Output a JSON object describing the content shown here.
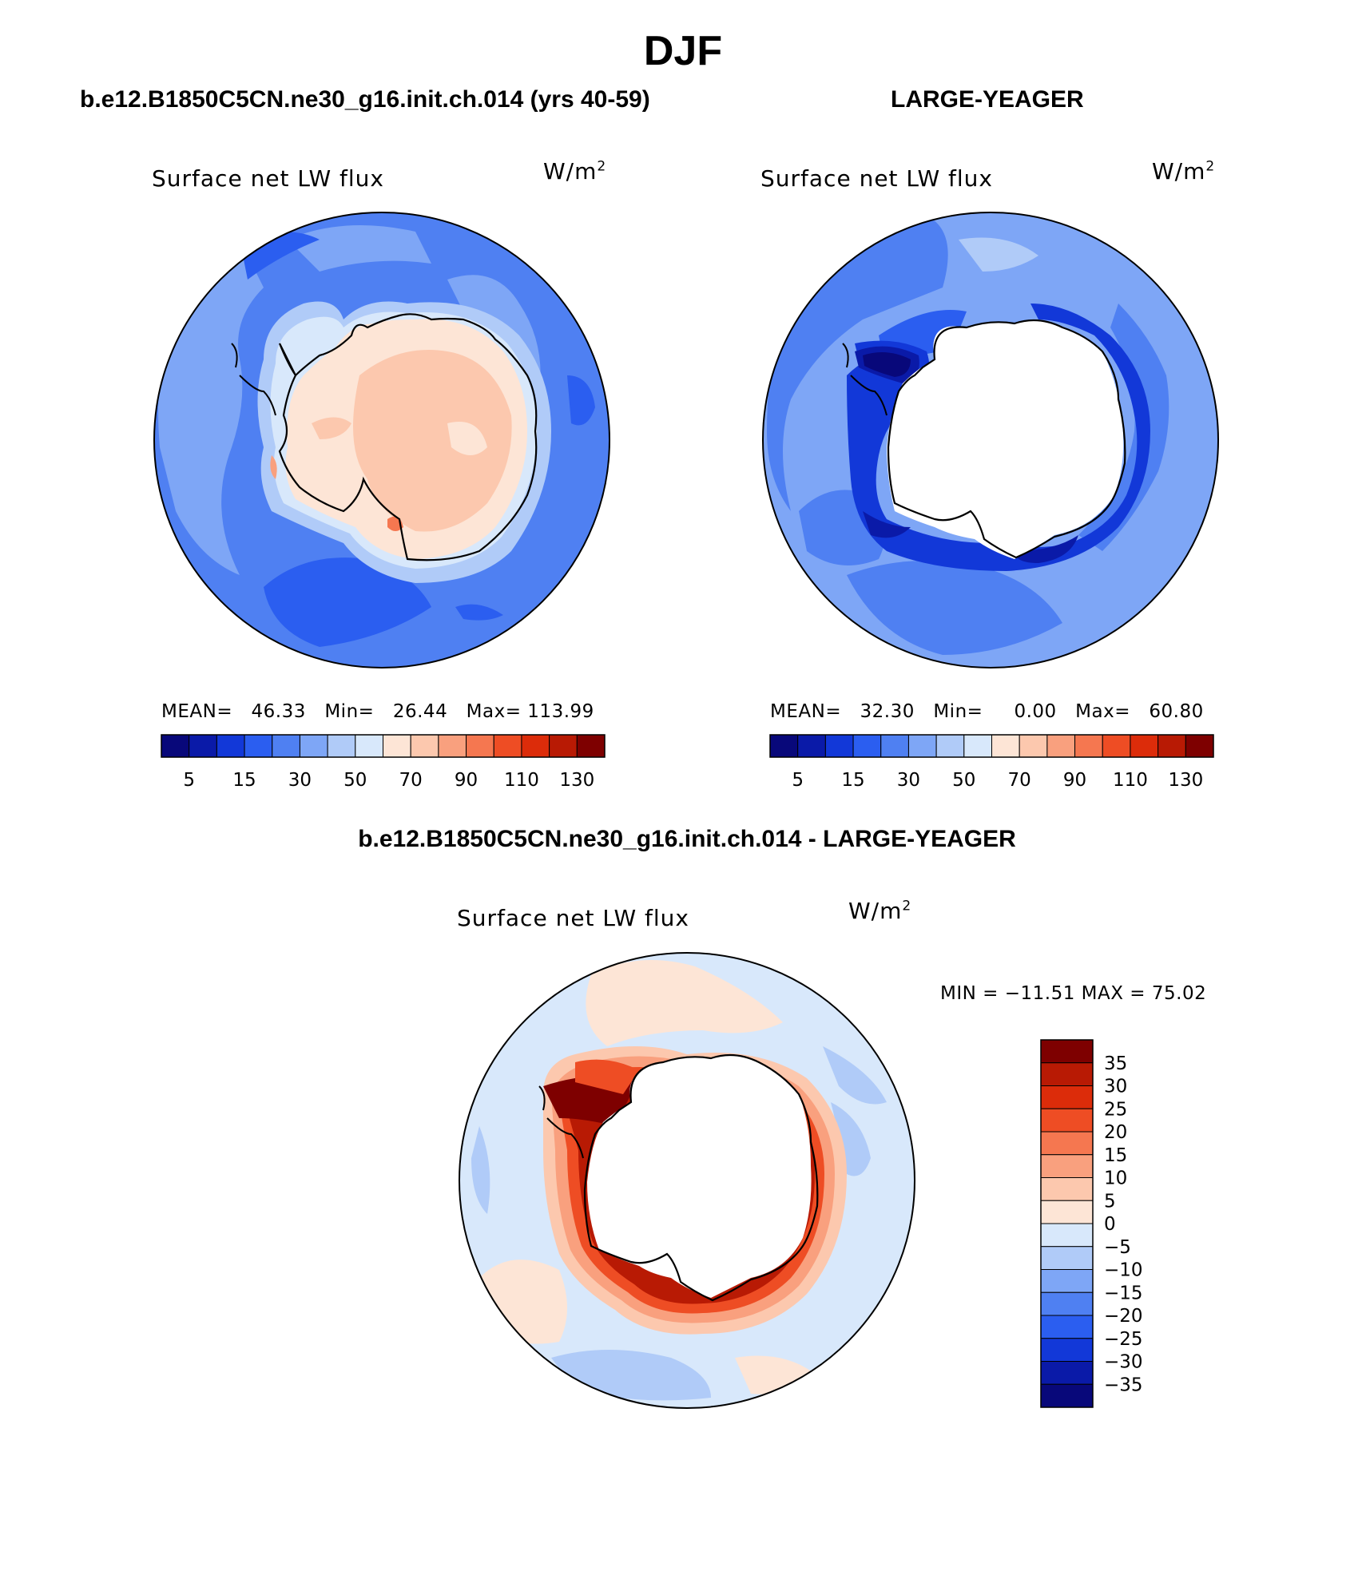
{
  "title": "DJF",
  "panels": [
    {
      "case": "b.e12.B1850C5CN.ne30_g16.init.ch.014 (yrs 40-59)",
      "variable": "Surface net LW flux",
      "units": "W/m",
      "units_sup": "2",
      "stats": {
        "mean_label": "MEAN=",
        "mean": "46.33",
        "min_label": "Min=",
        "min": "26.44",
        "max_label": "Max=",
        "max": "113.99"
      },
      "colorbar_labels": [
        "5",
        "15",
        "30",
        "50",
        "70",
        "90",
        "110",
        "130"
      ]
    },
    {
      "case": "LARGE-YEAGER",
      "variable": "Surface net LW flux",
      "units": "W/m",
      "units_sup": "2",
      "stats": {
        "mean_label": "MEAN=",
        "mean": "32.30",
        "min_label": "Min=",
        "min": "0.00",
        "max_label": "Max=",
        "max": "60.80"
      },
      "colorbar_labels": [
        "5",
        "15",
        "30",
        "50",
        "70",
        "90",
        "110",
        "130"
      ]
    },
    {
      "case": "b.e12.B1850C5CN.ne30_g16.init.ch.014 - LARGE-YEAGER",
      "variable": "Surface net LW flux",
      "units": "W/m",
      "units_sup": "2",
      "minmax": "MIN = −11.51 MAX =   75.02",
      "colorbar_labels": [
        "35",
        "30",
        "25",
        "20",
        "15",
        "10",
        "5",
        "0",
        "−5",
        "−10",
        "−15",
        "−20",
        "−25",
        "−30",
        "−35"
      ]
    }
  ],
  "colors": {
    "abs_scale": [
      "#08087a",
      "#0a1aa8",
      "#1238d8",
      "#2b5ef0",
      "#4f80f2",
      "#7ea6f6",
      "#b0cbf8",
      "#d8e8fb",
      "#fde5d6",
      "#fcc8ae",
      "#f9a07e",
      "#f57750",
      "#ee4d24",
      "#dc2c0a",
      "#b81a04",
      "#7e0000"
    ],
    "diff_scale": [
      "#7e0000",
      "#b81a04",
      "#dc2c0a",
      "#ee4d24",
      "#f57750",
      "#f9a07e",
      "#fcc8ae",
      "#fde5d6",
      "#d8e8fb",
      "#b0cbf8",
      "#7ea6f6",
      "#4f80f2",
      "#2b5ef0",
      "#1238d8",
      "#0a1aa8",
      "#08087a"
    ]
  },
  "chart_data": [
    {
      "type": "heatmap",
      "projection": "south-polar-stereographic",
      "title": "Surface net LW flux",
      "units": "W/m2",
      "mean": 46.33,
      "min": 26.44,
      "max": 113.99,
      "levels": [
        5,
        10,
        15,
        20,
        30,
        40,
        50,
        60,
        70,
        80,
        90,
        100,
        110,
        120,
        130
      ]
    },
    {
      "type": "heatmap",
      "projection": "south-polar-stereographic",
      "title": "Surface net LW flux",
      "units": "W/m2",
      "mean": 32.3,
      "min": 0.0,
      "max": 60.8,
      "levels": [
        5,
        10,
        15,
        20,
        30,
        40,
        50,
        60,
        70,
        80,
        90,
        100,
        110,
        120,
        130
      ]
    },
    {
      "type": "heatmap",
      "projection": "south-polar-stereographic",
      "title": "Surface net LW flux",
      "units": "W/m2",
      "min": -11.51,
      "max": 75.02,
      "levels": [
        -35,
        -30,
        -25,
        -20,
        -15,
        -10,
        -5,
        0,
        5,
        10,
        15,
        20,
        25,
        30,
        35
      ]
    }
  ]
}
